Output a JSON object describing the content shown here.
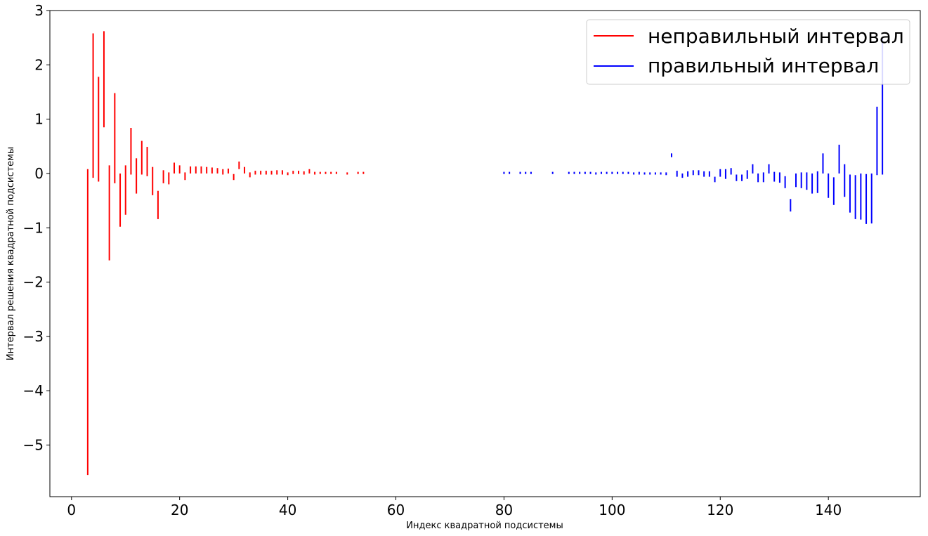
{
  "chart_data": {
    "type": "errorbar-intervals",
    "xlabel": "Индекс квадратной подсистемы",
    "ylabel": "Интервал решения квадратной подсистемы",
    "xlim": [
      -4,
      157
    ],
    "ylim": [
      -5.95,
      3.0
    ],
    "xticks": [
      0,
      20,
      40,
      60,
      80,
      100,
      120,
      140
    ],
    "yticks": [
      3,
      2,
      1,
      0,
      -1,
      -2,
      -3,
      -4,
      -5
    ],
    "ytick_labels": [
      "3",
      "2",
      "1",
      "0",
      "−1",
      "−2",
      "−3",
      "−4",
      "−5"
    ],
    "grid": false,
    "legend_position": "upper-right",
    "series": [
      {
        "name": "неправильный интервал",
        "color": "#ff0000",
        "intervals": [
          [
            3,
            -5.55,
            0.08
          ],
          [
            4,
            -0.08,
            2.58
          ],
          [
            5,
            -0.15,
            1.78
          ],
          [
            6,
            0.85,
            2.62
          ],
          [
            7,
            -1.6,
            0.15
          ],
          [
            8,
            -0.18,
            1.48
          ],
          [
            9,
            -0.98,
            0.0
          ],
          [
            10,
            -0.76,
            0.15
          ],
          [
            11,
            -0.02,
            0.84
          ],
          [
            12,
            -0.37,
            0.28
          ],
          [
            13,
            -0.02,
            0.6
          ],
          [
            14,
            -0.05,
            0.49
          ],
          [
            15,
            -0.4,
            0.12
          ],
          [
            16,
            -0.84,
            -0.32
          ],
          [
            17,
            -0.18,
            0.06
          ],
          [
            18,
            -0.2,
            0.02
          ],
          [
            19,
            0.0,
            0.2
          ],
          [
            20,
            0.0,
            0.15
          ],
          [
            21,
            -0.12,
            0.02
          ],
          [
            22,
            0.0,
            0.13
          ],
          [
            23,
            0.0,
            0.13
          ],
          [
            24,
            0.0,
            0.13
          ],
          [
            25,
            0.0,
            0.12
          ],
          [
            26,
            0.0,
            0.11
          ],
          [
            27,
            0.0,
            0.1
          ],
          [
            28,
            -0.02,
            0.08
          ],
          [
            29,
            0.0,
            0.09
          ],
          [
            30,
            -0.12,
            -0.01
          ],
          [
            31,
            0.08,
            0.22
          ],
          [
            32,
            0.0,
            0.12
          ],
          [
            33,
            -0.07,
            0.02
          ],
          [
            34,
            -0.02,
            0.05
          ],
          [
            35,
            -0.02,
            0.05
          ],
          [
            36,
            -0.02,
            0.05
          ],
          [
            37,
            -0.02,
            0.05
          ],
          [
            38,
            -0.02,
            0.06
          ],
          [
            39,
            -0.02,
            0.06
          ],
          [
            40,
            -0.03,
            0.02
          ],
          [
            41,
            -0.01,
            0.05
          ],
          [
            42,
            -0.01,
            0.05
          ],
          [
            43,
            -0.02,
            0.04
          ],
          [
            44,
            0.0,
            0.08
          ],
          [
            45,
            -0.02,
            0.03
          ],
          [
            46,
            -0.01,
            0.03
          ],
          [
            47,
            -0.01,
            0.03
          ],
          [
            48,
            -0.01,
            0.03
          ],
          [
            49,
            -0.01,
            0.03
          ],
          [
            51,
            -0.02,
            0.02
          ],
          [
            53,
            -0.01,
            0.03
          ],
          [
            54,
            -0.01,
            0.03
          ]
        ]
      },
      {
        "name": "правильный интервал",
        "color": "#0000ff",
        "intervals": [
          [
            80,
            -0.01,
            0.03
          ],
          [
            81,
            -0.01,
            0.03
          ],
          [
            83,
            -0.01,
            0.03
          ],
          [
            84,
            -0.01,
            0.03
          ],
          [
            85,
            -0.01,
            0.03
          ],
          [
            89,
            -0.01,
            0.03
          ],
          [
            92,
            -0.01,
            0.03
          ],
          [
            93,
            -0.01,
            0.03
          ],
          [
            94,
            -0.01,
            0.03
          ],
          [
            95,
            -0.01,
            0.03
          ],
          [
            96,
            -0.01,
            0.03
          ],
          [
            97,
            -0.02,
            0.02
          ],
          [
            98,
            -0.01,
            0.03
          ],
          [
            99,
            -0.01,
            0.03
          ],
          [
            100,
            -0.01,
            0.03
          ],
          [
            101,
            -0.01,
            0.03
          ],
          [
            102,
            -0.01,
            0.03
          ],
          [
            103,
            -0.01,
            0.03
          ],
          [
            104,
            -0.02,
            0.02
          ],
          [
            105,
            -0.02,
            0.03
          ],
          [
            106,
            -0.02,
            0.02
          ],
          [
            107,
            -0.02,
            0.02
          ],
          [
            108,
            -0.02,
            0.02
          ],
          [
            109,
            -0.02,
            0.02
          ],
          [
            110,
            -0.03,
            0.02
          ],
          [
            111,
            0.3,
            0.37
          ],
          [
            112,
            -0.06,
            0.05
          ],
          [
            113,
            -0.08,
            0.0
          ],
          [
            114,
            -0.06,
            0.04
          ],
          [
            115,
            -0.03,
            0.06
          ],
          [
            116,
            -0.03,
            0.06
          ],
          [
            117,
            -0.06,
            0.04
          ],
          [
            118,
            -0.06,
            0.04
          ],
          [
            119,
            -0.16,
            -0.06
          ],
          [
            120,
            -0.06,
            0.08
          ],
          [
            121,
            -0.1,
            0.08
          ],
          [
            122,
            -0.02,
            0.1
          ],
          [
            123,
            -0.14,
            -0.02
          ],
          [
            124,
            -0.14,
            -0.02
          ],
          [
            125,
            -0.1,
            0.06
          ],
          [
            126,
            0.0,
            0.17
          ],
          [
            127,
            -0.16,
            0.0
          ],
          [
            128,
            -0.16,
            0.02
          ],
          [
            129,
            0.0,
            0.17
          ],
          [
            130,
            -0.15,
            0.03
          ],
          [
            131,
            -0.17,
            0.02
          ],
          [
            132,
            -0.27,
            -0.05
          ],
          [
            133,
            -0.7,
            -0.47
          ],
          [
            134,
            -0.25,
            0.0
          ],
          [
            135,
            -0.27,
            0.02
          ],
          [
            136,
            -0.3,
            0.02
          ],
          [
            137,
            -0.37,
            0.0
          ],
          [
            138,
            -0.36,
            0.04
          ],
          [
            139,
            0.0,
            0.37
          ],
          [
            140,
            -0.45,
            0.0
          ],
          [
            141,
            -0.58,
            -0.07
          ],
          [
            142,
            0.0,
            0.53
          ],
          [
            143,
            -0.43,
            0.17
          ],
          [
            144,
            -0.72,
            -0.02
          ],
          [
            145,
            -0.84,
            -0.03
          ],
          [
            146,
            -0.85,
            0.0
          ],
          [
            147,
            -0.93,
            -0.01
          ],
          [
            148,
            -0.92,
            0.0
          ],
          [
            149,
            -0.03,
            1.23
          ],
          [
            150,
            -0.02,
            2.48
          ]
        ]
      }
    ]
  }
}
